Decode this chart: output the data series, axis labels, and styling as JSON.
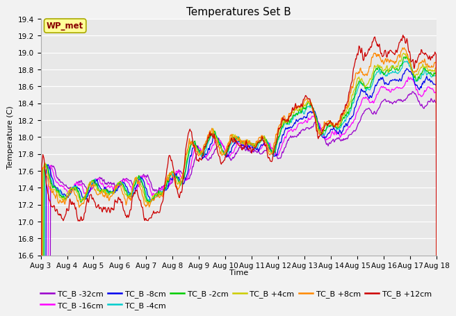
{
  "title": "Temperatures Set B",
  "xlabel": "Time",
  "ylabel": "Temperature (C)",
  "ylim": [
    16.6,
    19.4
  ],
  "yticks": [
    16.6,
    16.8,
    17.0,
    17.2,
    17.4,
    17.6,
    17.8,
    18.0,
    18.2,
    18.4,
    18.6,
    18.8,
    19.0,
    19.2,
    19.4
  ],
  "xtick_labels": [
    "Aug 3",
    "Aug 4",
    "Aug 5",
    "Aug 6",
    "Aug 7",
    "Aug 8",
    "Aug 9",
    "Aug 10",
    "Aug 11",
    "Aug 12",
    "Aug 13",
    "Aug 14",
    "Aug 15",
    "Aug 16",
    "Aug 17",
    "Aug 18"
  ],
  "n_points": 720,
  "series": [
    {
      "label": "TC_B -32cm",
      "color": "#9900cc"
    },
    {
      "label": "TC_B -16cm",
      "color": "#ff00ff"
    },
    {
      "label": "TC_B -8cm",
      "color": "#0000ee"
    },
    {
      "label": "TC_B -4cm",
      "color": "#00cccc"
    },
    {
      "label": "TC_B -2cm",
      "color": "#00cc00"
    },
    {
      "label": "TC_B +4cm",
      "color": "#cccc00"
    },
    {
      "label": "TC_B +8cm",
      "color": "#ff8800"
    },
    {
      "label": "TC_B +12cm",
      "color": "#cc0000"
    }
  ],
  "wp_met_box_facecolor": "#ffff99",
  "wp_met_text_color": "#880000",
  "wp_met_edge_color": "#aaaa00",
  "plot_bg_color": "#e8e8e8",
  "fig_bg_color": "#f2f2f2",
  "grid_color": "#ffffff",
  "title_fontsize": 11,
  "axis_label_fontsize": 8,
  "tick_fontsize": 7.5,
  "legend_fontsize": 8,
  "linewidth": 0.9
}
